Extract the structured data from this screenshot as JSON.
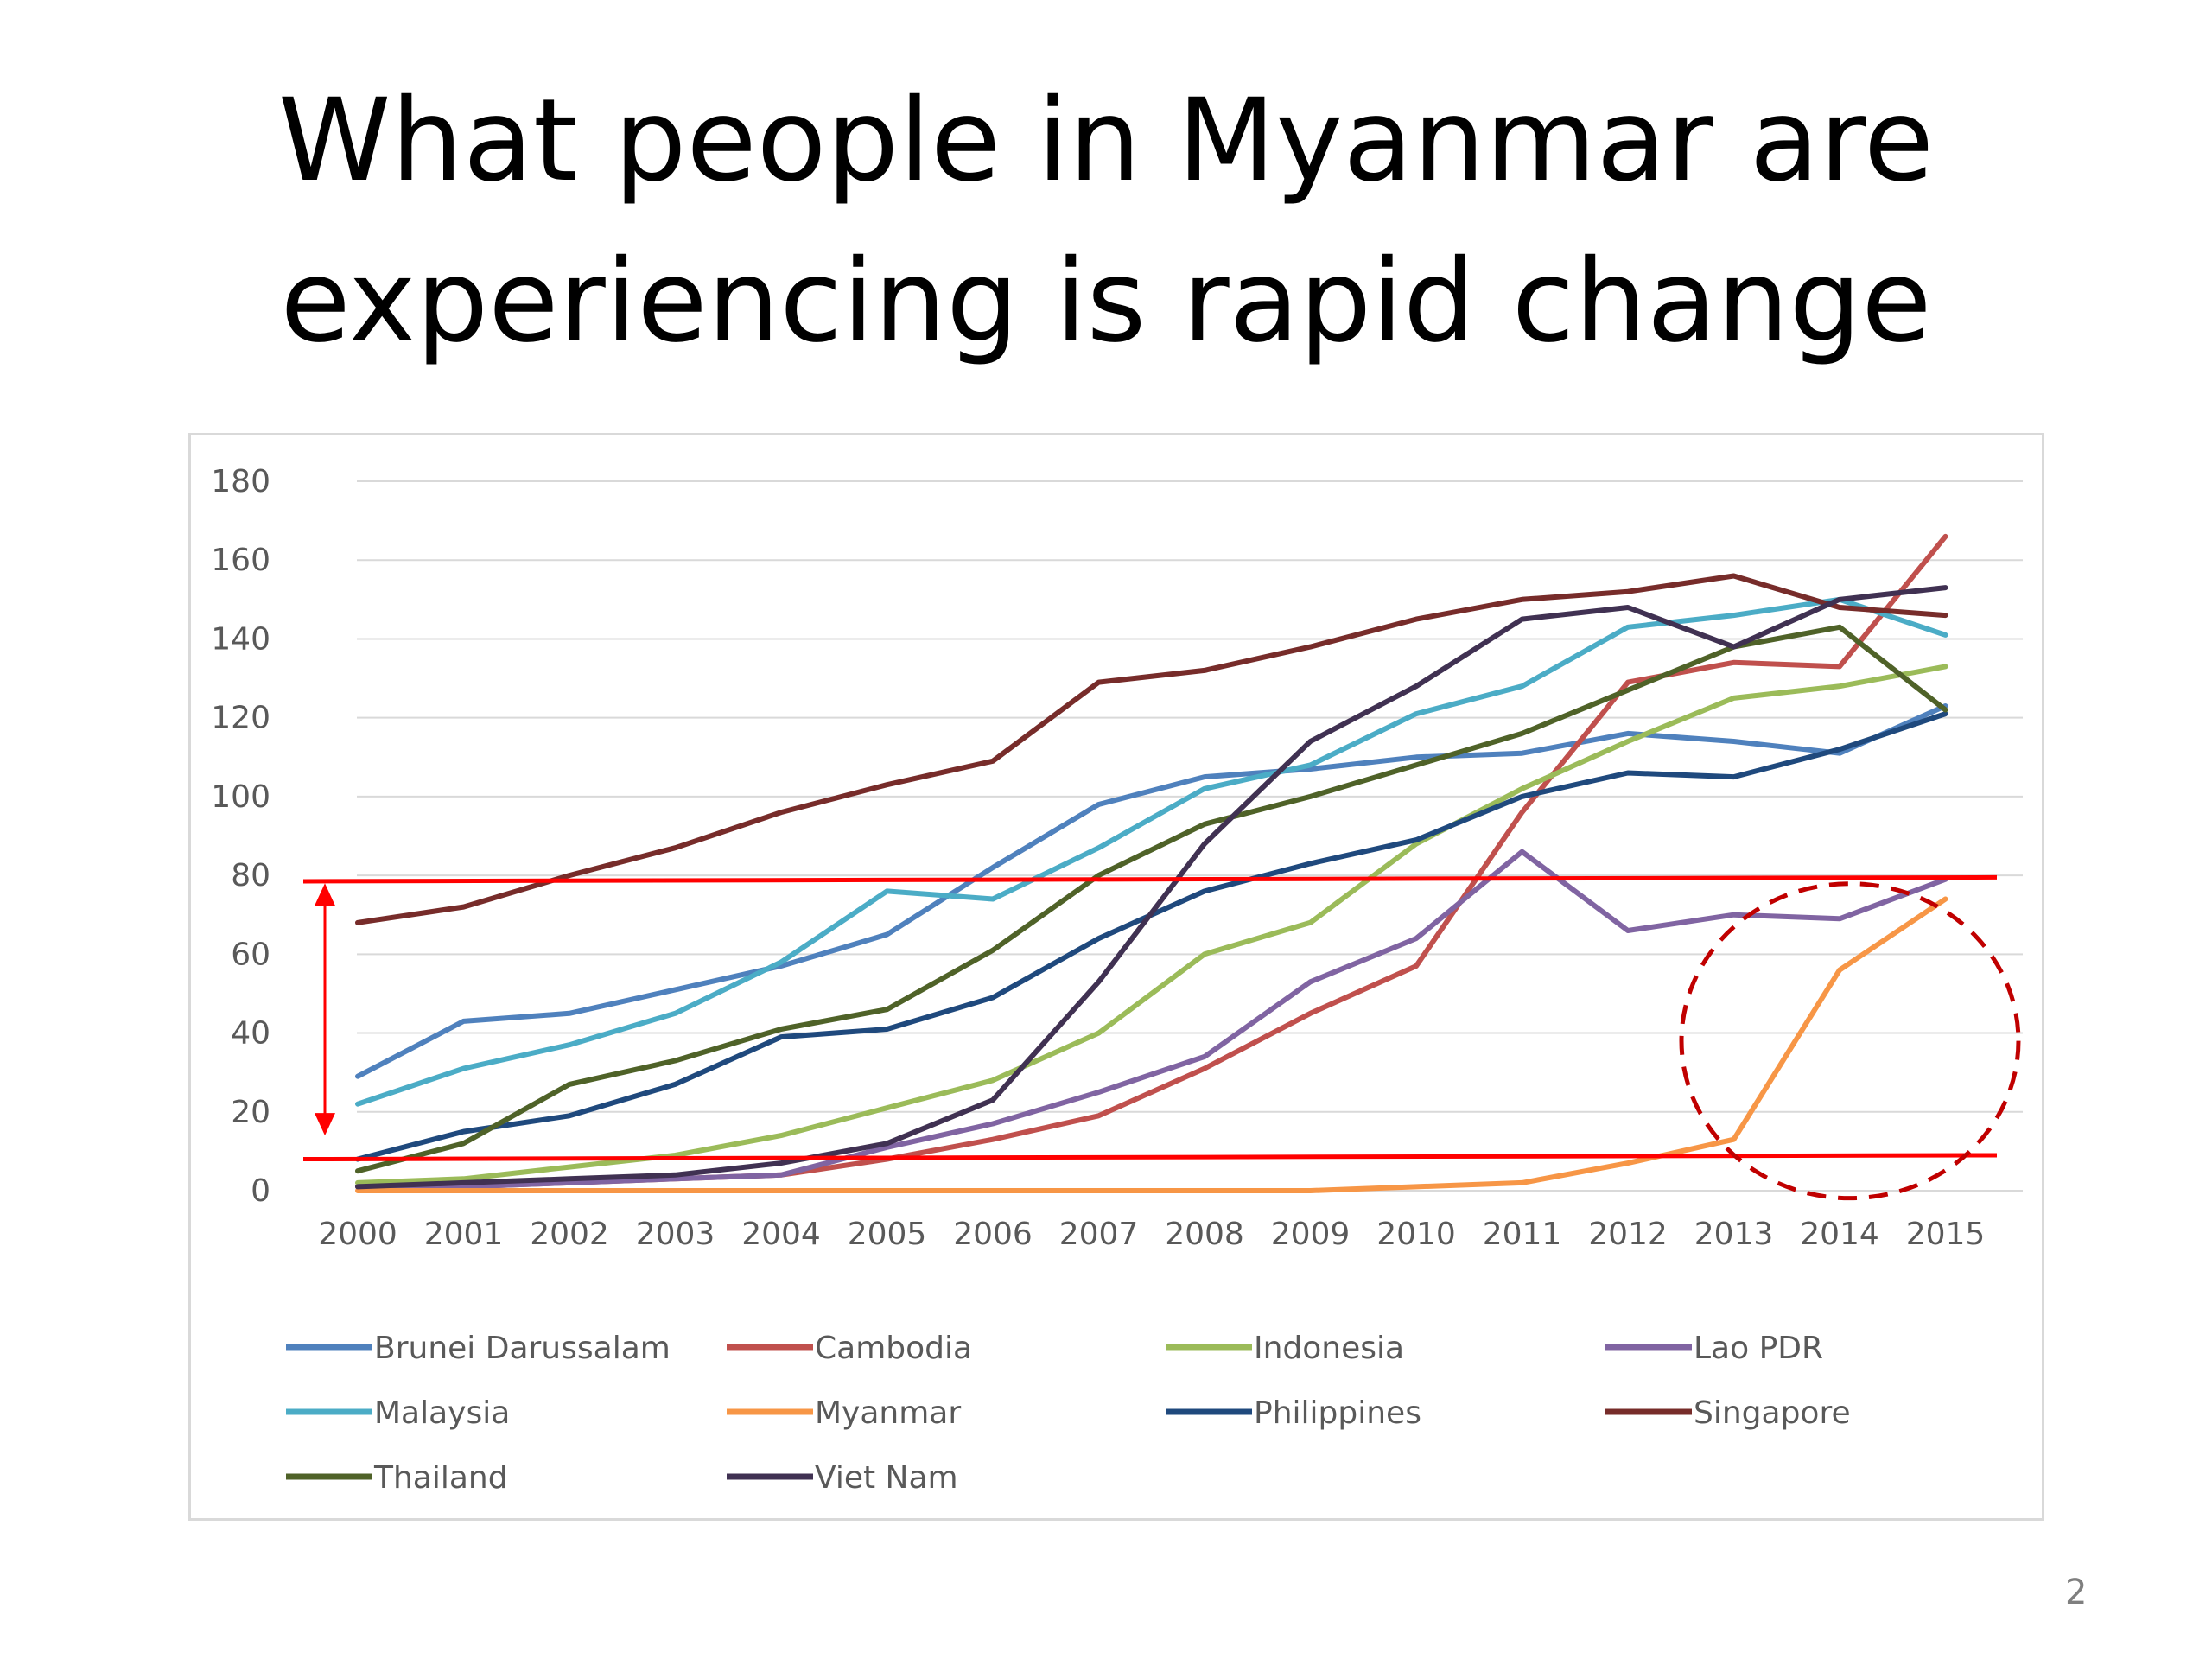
{
  "slide": {
    "title_line1": "What people in Myanmar are",
    "title_line2": "experiencing is rapid change",
    "page_number": "2"
  },
  "chart_data": {
    "type": "line",
    "title": "",
    "xlabel": "",
    "ylabel": "",
    "ylim": [
      0,
      180
    ],
    "yticks": [
      0,
      20,
      40,
      60,
      80,
      100,
      120,
      140,
      160,
      180
    ],
    "grid": true,
    "legend_position": "bottom",
    "categories": [
      "2000",
      "2001",
      "2002",
      "2003",
      "2004",
      "2005",
      "2006",
      "2007",
      "2008",
      "2009",
      "2010",
      "2011",
      "2012",
      "2013",
      "2014",
      "2015"
    ],
    "series": [
      {
        "name": "Brunei Darussalam",
        "color": "#4f81bd",
        "values": [
          29,
          43,
          45,
          51,
          57,
          65,
          82,
          98,
          105,
          107,
          110,
          111,
          116,
          114,
          111,
          123
        ]
      },
      {
        "name": "Cambodia",
        "color": "#c0504d",
        "values": [
          1,
          1,
          2,
          3,
          4,
          8,
          13,
          19,
          31,
          45,
          57,
          96,
          129,
          134,
          133,
          166
        ]
      },
      {
        "name": "Indonesia",
        "color": "#9bbb59",
        "values": [
          2,
          3,
          6,
          9,
          14,
          21,
          28,
          40,
          60,
          68,
          88,
          102,
          114,
          125,
          128,
          133
        ]
      },
      {
        "name": "Lao PDR",
        "color": "#8064a2",
        "values": [
          1,
          1,
          2,
          3,
          4,
          11,
          17,
          25,
          34,
          53,
          64,
          86,
          66,
          70,
          69,
          79
        ]
      },
      {
        "name": "Malaysia",
        "color": "#4bacc6",
        "values": [
          22,
          31,
          37,
          45,
          58,
          76,
          74,
          87,
          102,
          108,
          121,
          128,
          143,
          146,
          150,
          141
        ]
      },
      {
        "name": "Myanmar",
        "color": "#f79646",
        "values": [
          0,
          0,
          0,
          0,
          0,
          0,
          0,
          0,
          0,
          0,
          1,
          2,
          7,
          13,
          56,
          74
        ]
      },
      {
        "name": "Philippines",
        "color": "#1f497d",
        "values": [
          8,
          15,
          19,
          27,
          39,
          41,
          49,
          64,
          76,
          83,
          89,
          100,
          106,
          105,
          112,
          121
        ]
      },
      {
        "name": "Singapore",
        "color": "#772c2a",
        "values": [
          68,
          72,
          80,
          87,
          96,
          103,
          109,
          129,
          132,
          138,
          145,
          150,
          152,
          156,
          148,
          146
        ]
      },
      {
        "name": "Thailand",
        "color": "#4f6228",
        "values": [
          5,
          12,
          27,
          33,
          41,
          46,
          61,
          80,
          93,
          100,
          108,
          116,
          127,
          138,
          143,
          122
        ]
      },
      {
        "name": "Viet Nam",
        "color": "#403152",
        "values": [
          1,
          2,
          3,
          4,
          7,
          12,
          23,
          53,
          88,
          114,
          128,
          145,
          148,
          138,
          150,
          153
        ]
      }
    ],
    "annotations": [
      {
        "type": "reference-line",
        "color": "#ff0000",
        "value_at_2000": 78.5,
        "value_at_2015": 79.5
      },
      {
        "type": "reference-line",
        "color": "#ff0000",
        "value_at_2000": 8,
        "value_at_2015": 9
      },
      {
        "type": "double-arrow",
        "color": "#ff0000",
        "from": 78,
        "to": 14
      },
      {
        "type": "dashed-circle",
        "color": "#c00000",
        "target_series": "Myanmar",
        "x_range": [
          "2013",
          "2015"
        ]
      }
    ]
  }
}
